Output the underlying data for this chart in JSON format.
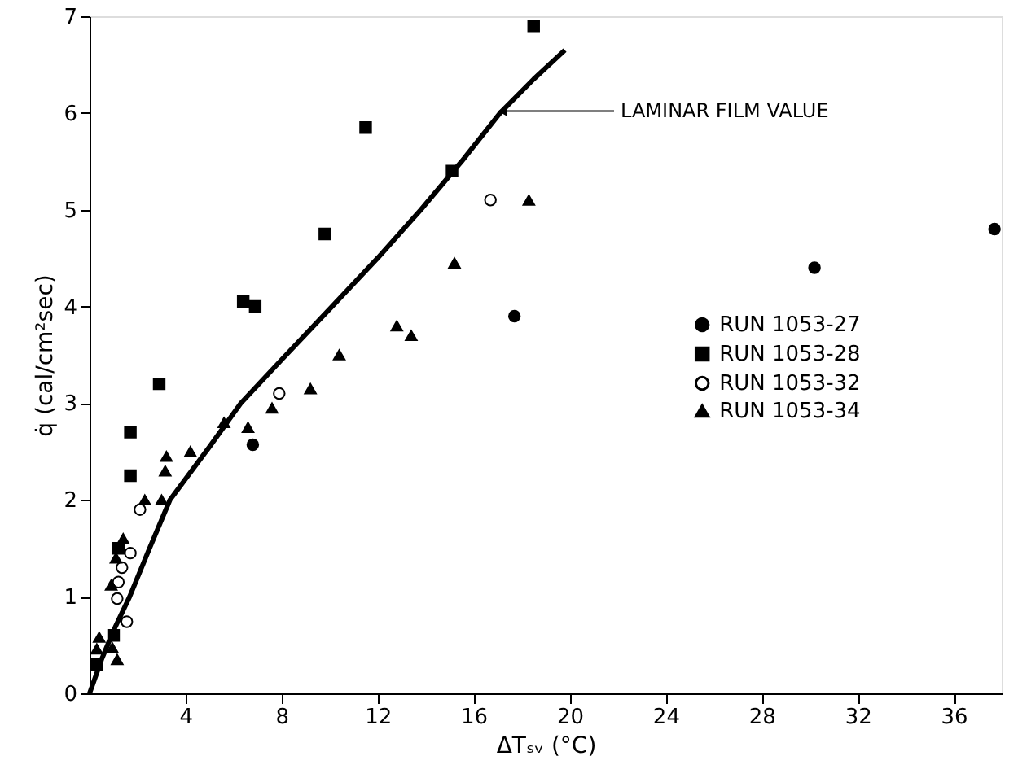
{
  "chart_data": {
    "type": "scatter",
    "xlabel": "ΔTₛᵥ (°C)",
    "ylabel": "q̇ (cal/cm²sec)",
    "xlim": [
      0,
      38
    ],
    "ylim": [
      0,
      7
    ],
    "xticks": [
      4,
      8,
      12,
      16,
      20,
      24,
      28,
      32,
      36
    ],
    "yticks": [
      0,
      1,
      2,
      3,
      4,
      5,
      6,
      7
    ],
    "grid": false,
    "legend": "right",
    "annotations": [
      {
        "text": "LAMINAR FILM VALUE",
        "x": 17.2,
        "y": 6.02
      }
    ],
    "series": [
      {
        "name": "RUN 1053-27",
        "color": "#000000",
        "marker": "circle",
        "x": [
          6.8,
          17.7,
          30.2,
          37.7
        ],
        "values": [
          2.57,
          3.9,
          4.4,
          4.8
        ]
      },
      {
        "name": "RUN 1053-28",
        "color": "#000000",
        "marker": "square",
        "x": [
          18.5,
          11.5,
          9.8,
          15.1,
          6.4,
          6.9,
          2.9,
          1.7,
          1.7,
          1.2,
          0.3,
          1.0
        ],
        "values": [
          6.9,
          5.85,
          4.75,
          5.4,
          4.05,
          4.0,
          3.2,
          2.7,
          2.25,
          1.5,
          0.3,
          0.6
        ]
      },
      {
        "name": "RUN 1053-32",
        "color": "#000000",
        "marker": "circle",
        "colors": [
          "#ffffff",
          "#ffffff",
          "#ffffff",
          "#ffffff",
          "#ffffff",
          "#ffffff",
          "#ffffff",
          "#ffffff"
        ],
        "x": [
          16.7,
          7.9,
          2.1,
          1.7,
          1.35,
          1.2,
          1.15,
          1.55
        ],
        "values": [
          5.1,
          3.1,
          1.9,
          1.45,
          1.3,
          1.15,
          0.98,
          0.74
        ]
      },
      {
        "name": "RUN 1053-34",
        "color": "#000000",
        "marker": "triangle",
        "x": [
          18.3,
          15.2,
          10.4,
          12.8,
          13.4,
          9.2,
          7.6,
          6.6,
          5.6,
          4.2,
          3.2,
          3.15,
          2.3,
          3.0,
          1.4,
          1.1,
          0.9,
          0.4,
          0.3,
          1.15,
          0.95
        ],
        "values": [
          5.1,
          4.45,
          3.5,
          3.8,
          3.7,
          3.15,
          2.95,
          2.75,
          2.8,
          2.5,
          2.45,
          2.3,
          2.0,
          2.0,
          1.6,
          1.4,
          1.12,
          0.58,
          0.46,
          0.35,
          0.47
        ]
      },
      {
        "type": "line",
        "color": "#000000",
        "marker": "none",
        "x": [
          0,
          0.5,
          1,
          1.67,
          2.5,
          3.35,
          5,
          6.3,
          8,
          10.1,
          12,
          13.8,
          15.5,
          17.1,
          18.5,
          19.8
        ],
        "values": [
          0,
          0.35,
          0.65,
          1,
          1.5,
          2,
          2.55,
          3,
          3.45,
          4,
          4.5,
          5,
          5.5,
          6,
          6.35,
          6.65
        ]
      }
    ]
  }
}
